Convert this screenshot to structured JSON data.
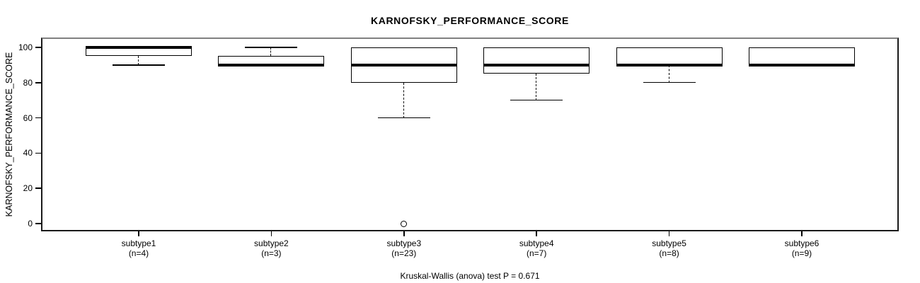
{
  "title": "KARNOFSKY_PERFORMANCE_SCORE",
  "footer": "Kruskal-Wallis (anova) test P = 0.671",
  "colors": {
    "background": "#ffffff",
    "line": "#000000",
    "box_fill": "#ffffff",
    "frame_top": "#808080"
  },
  "chart_data": {
    "type": "boxplot",
    "title": "KARNOFSKY_PERFORMANCE_SCORE",
    "xlabel": "",
    "ylabel": "KARNOFSKY_PERFORMANCE_SCORE",
    "ylim": [
      0,
      100
    ],
    "yticks": [
      0,
      20,
      40,
      60,
      80,
      100
    ],
    "grid": false,
    "legend": "none",
    "categories": [
      "subtype1",
      "subtype2",
      "subtype3",
      "subtype4",
      "subtype5",
      "subtype6"
    ],
    "sample_labels": [
      "(n=4)",
      "(n=3)",
      "(n=23)",
      "(n=7)",
      "(n=8)",
      "(n=9)"
    ],
    "series": [
      {
        "category": "subtype1",
        "n": 4,
        "whisker_low": 90,
        "q1": 95,
        "median": 100,
        "q3": 100,
        "whisker_high": 100,
        "outliers": []
      },
      {
        "category": "subtype2",
        "n": 3,
        "whisker_low": 90,
        "q1": 90,
        "median": 90,
        "q3": 95,
        "whisker_high": 100,
        "outliers": []
      },
      {
        "category": "subtype3",
        "n": 23,
        "whisker_low": 60,
        "q1": 80,
        "median": 90,
        "q3": 100,
        "whisker_high": 100,
        "outliers": [
          0
        ]
      },
      {
        "category": "subtype4",
        "n": 7,
        "whisker_low": 70,
        "q1": 85,
        "median": 90,
        "q3": 100,
        "whisker_high": 100,
        "outliers": []
      },
      {
        "category": "subtype5",
        "n": 8,
        "whisker_low": 80,
        "q1": 90,
        "median": 90,
        "q3": 100,
        "whisker_high": 100,
        "outliers": []
      },
      {
        "category": "subtype6",
        "n": 9,
        "whisker_low": 90,
        "q1": 90,
        "median": 90,
        "q3": 100,
        "whisker_high": 100,
        "outliers": []
      }
    ],
    "annotation": "Kruskal-Wallis (anova) test P = 0.671"
  }
}
